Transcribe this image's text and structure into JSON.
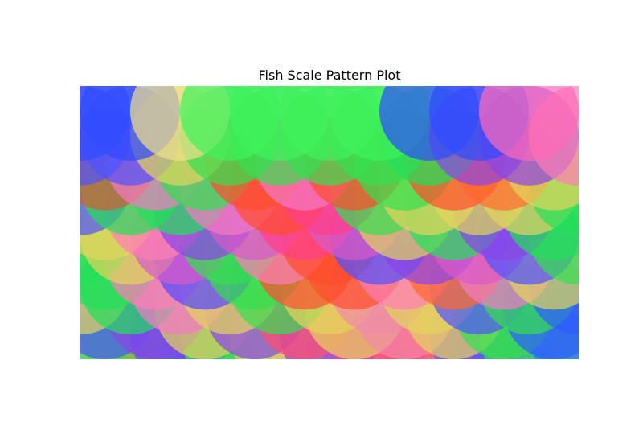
{
  "chart_data": {
    "type": "scatter",
    "title": "Fish Scale Pattern Plot",
    "xlabel": "",
    "ylabel": "",
    "xlim": [
      0,
      10
    ],
    "ylim": [
      0,
      5.5
    ],
    "axes_visible": false,
    "grid": false,
    "legend": "none",
    "marker": "circle",
    "marker_radius_data_units": 1.0,
    "alpha": 0.7,
    "rows": [
      {
        "y": 0.0,
        "x": [
          0.5,
          1.5,
          2.5,
          3.5,
          4.5,
          5.5,
          6.5,
          7.5,
          8.5,
          9.5
        ],
        "colors": [
          "#ff7eb6",
          "#ff4d2e",
          "#8a44e8",
          "#34e04f",
          "#f47ac3",
          "#ff6a8e",
          "#f08a6c",
          "#ff8fb0",
          "#4f53ff",
          "#2f7ae8"
        ]
      },
      {
        "y": 0.5,
        "x": [
          0,
          1,
          2,
          3,
          4,
          5,
          6,
          7,
          8,
          9,
          10
        ],
        "colors": [
          "#22e05a",
          "#49db46",
          "#5148ff",
          "#34e04f",
          "#e4d45c",
          "#8a44e8",
          "#ff3f8a",
          "#ff4d6f",
          "#4f53ff",
          "#34e04f",
          "#2f7ae8"
        ]
      },
      {
        "y": 1.0,
        "x": [
          0.5,
          1.5,
          2.5,
          3.5,
          4.5,
          5.5,
          6.5,
          7.5,
          8.5,
          9.5
        ],
        "colors": [
          "#4f53ff",
          "#8a44e8",
          "#e4d45c",
          "#8a44e8",
          "#ff4d6f",
          "#e4d45c",
          "#f08aa8",
          "#e4d45c",
          "#34e04f",
          "#2f5cff"
        ]
      },
      {
        "y": 1.5,
        "x": [
          0,
          1,
          2,
          3,
          4,
          5,
          6,
          7,
          8,
          9,
          10
        ],
        "colors": [
          "#e4d45c",
          "#22e05a",
          "#f47ac3",
          "#e4d45c",
          "#34e04f",
          "#e4d45c",
          "#f08aa8",
          "#e4d45c",
          "#4f53ff",
          "#34e04f",
          "#2f5cff"
        ]
      },
      {
        "y": 2.0,
        "x": [
          0.5,
          1.5,
          2.5,
          3.5,
          4.5,
          5.5,
          6.5,
          7.5,
          8.5,
          9.5
        ],
        "colors": [
          "#22e05a",
          "#ff7eb6",
          "#5148ff",
          "#34e04f",
          "#ff4d2e",
          "#ff4d2e",
          "#ff7eb6",
          "#ff6a2e",
          "#f47ac3",
          "#e4d45c"
        ]
      },
      {
        "y": 2.5,
        "x": [
          0,
          1,
          2,
          3,
          4,
          5,
          6,
          7,
          8,
          9,
          10
        ],
        "colors": [
          "#22e05a",
          "#e4d45c",
          "#d85acb",
          "#34e04f",
          "#ff7eb6",
          "#ff4d2e",
          "#4f53ff",
          "#8a44e8",
          "#d85acb",
          "#4f53ff",
          "#34e04f"
        ]
      },
      {
        "y": 3.0,
        "x": [
          0.5,
          1.5,
          2.5,
          3.5,
          4.5,
          5.5,
          6.5,
          7.5,
          8.5,
          9.5
        ],
        "colors": [
          "#e4d45c",
          "#ff7eb6",
          "#8a44e8",
          "#d85acb",
          "#ff3f8a",
          "#d85acb",
          "#e4d45c",
          "#22e05a",
          "#8a44e8",
          "#22e05a"
        ]
      },
      {
        "y": 3.5,
        "x": [
          0,
          1,
          2,
          3,
          4,
          5,
          6,
          7,
          8,
          9,
          10
        ],
        "colors": [
          "#4f53ff",
          "#22e05a",
          "#22e05a",
          "#f47ac3",
          "#ff4d2e",
          "#ff3f8a",
          "#34e04f",
          "#e4d45c",
          "#e4d45c",
          "#e4d45c",
          "#22e05a"
        ]
      },
      {
        "y": 4.0,
        "x": [
          0.5,
          1.5,
          2.5,
          3.5,
          4.5,
          5.5,
          6.5,
          7.5,
          8.5,
          9.5
        ],
        "colors": [
          "#d85a32",
          "#f47ac3",
          "#34e04f",
          "#ff4d2e",
          "#f47ac3",
          "#ff4d2e",
          "#34e04f",
          "#ff4d2e",
          "#ff6a2e",
          "#e4d45c"
        ]
      },
      {
        "y": 4.5,
        "x": [
          0,
          1,
          2,
          3,
          4,
          5,
          6,
          7,
          8,
          9,
          10
        ],
        "colors": [
          "#4f53ff",
          "#4f53ff",
          "#e4d45c",
          "#34e04f",
          "#34e04f",
          "#34e04f",
          "#34e04f",
          "#22e05a",
          "#8a44e8",
          "#8a44e8",
          "#ff7eb6"
        ]
      },
      {
        "y": 5.0,
        "x": [
          0,
          1,
          2,
          3,
          4,
          5,
          6,
          7,
          8,
          9
        ],
        "colors": [
          "#2f4cff",
          "#2f4cff",
          "#f0e08c",
          "#3df25b",
          "#3df25b",
          "#3df25b",
          "#3df25b",
          "#2f4cff",
          "#2f4cff",
          "#ff6ab8"
        ]
      }
    ]
  }
}
